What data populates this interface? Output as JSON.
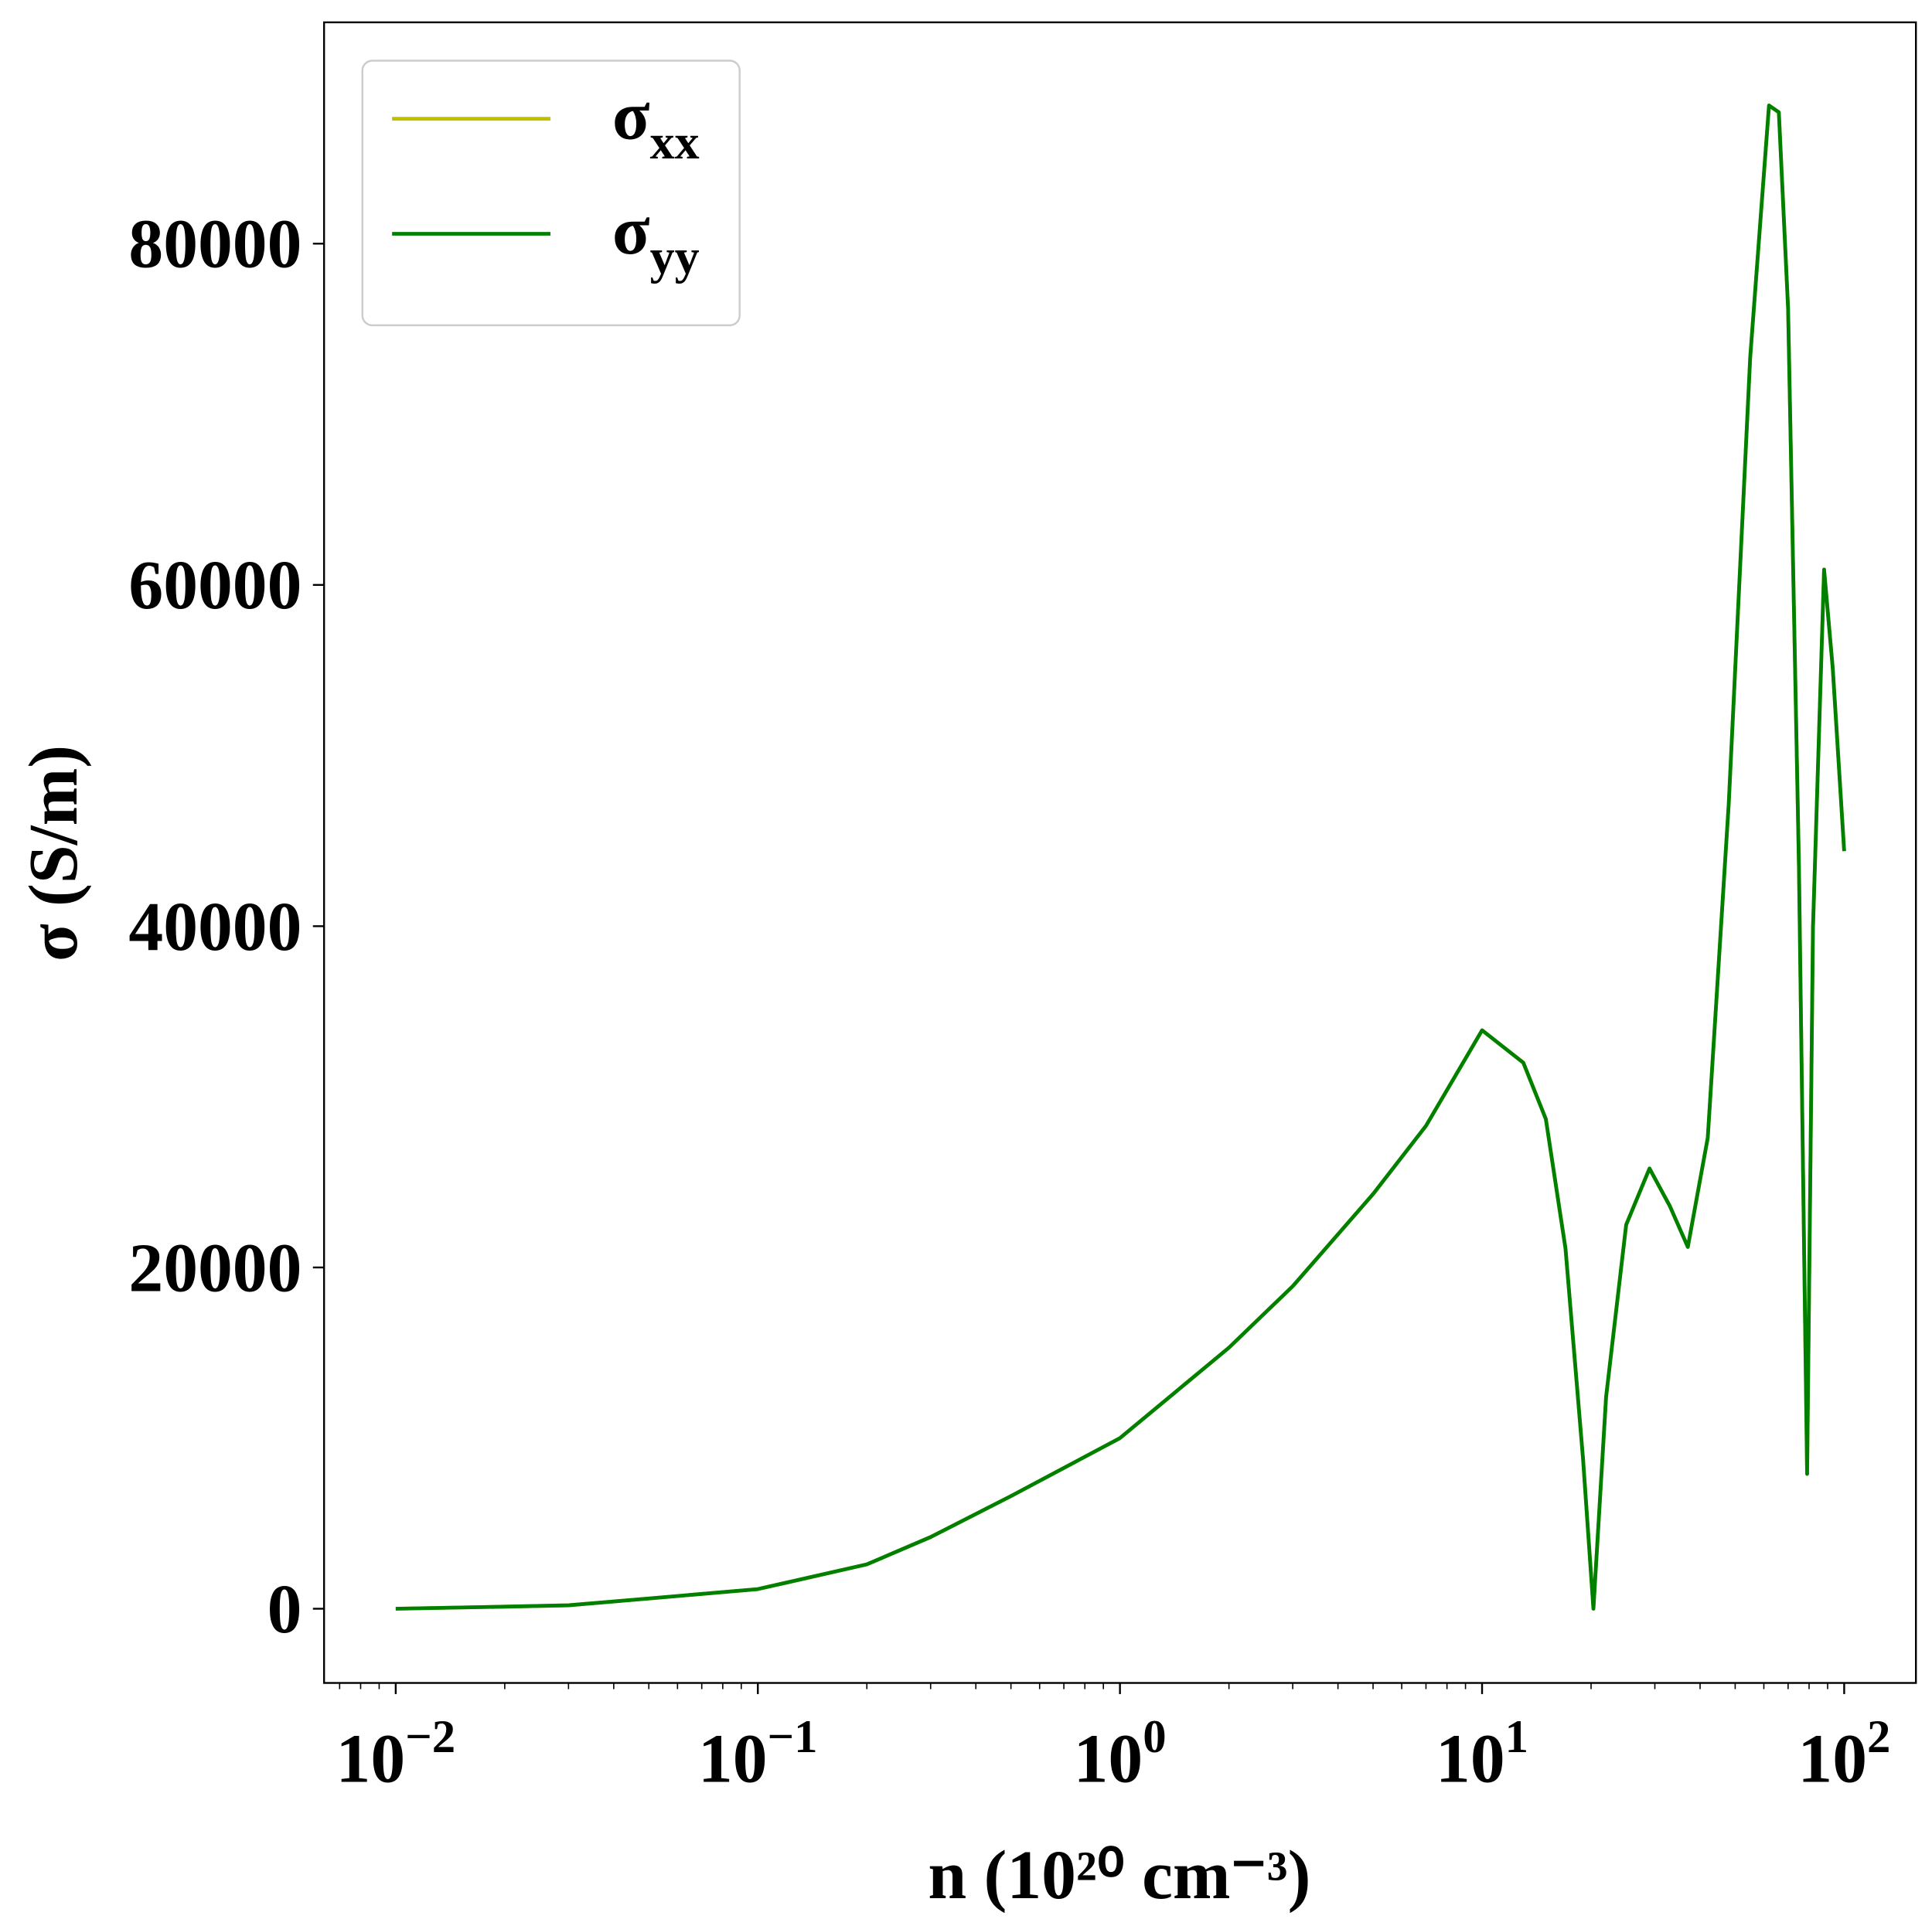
{
  "chart_data": {
    "type": "line",
    "xlabel": "n (10²⁰ cm⁻³)",
    "ylabel": "σ (S/m)",
    "xscale": "log",
    "xlim": [
      0.00634,
      157.8
    ],
    "ylim": [
      -4350,
      92970
    ],
    "xticks": [
      {
        "value": 0.01,
        "label": "10−2"
      },
      {
        "value": 0.1,
        "label": "10−1"
      },
      {
        "value": 1,
        "label": "100"
      },
      {
        "value": 10,
        "label": "101"
      },
      {
        "value": 100,
        "label": "102"
      }
    ],
    "yticks": [
      0,
      20000,
      40000,
      60000,
      80000
    ],
    "minor_xticks": true,
    "grid": false,
    "legend": "upper left",
    "x": [
      0.01,
      0.02,
      0.03,
      0.05,
      0.1,
      0.2,
      0.3,
      0.5,
      1,
      2,
      3,
      5,
      7,
      10,
      13,
      15,
      17,
      19,
      20.3,
      22,
      25,
      29,
      33,
      37,
      42,
      48,
      55,
      62,
      66,
      70,
      75,
      79,
      82,
      88,
      93,
      100
    ],
    "series": [
      {
        "name": "σxx",
        "color": "#bfbf00",
        "values": [
          0,
          120,
          200,
          600,
          1150,
          2600,
          4200,
          6600,
          10000,
          15300,
          18900,
          24300,
          28300,
          33900,
          32000,
          28700,
          21100,
          8800,
          0,
          12400,
          22500,
          25800,
          23600,
          21200,
          27600,
          47200,
          73300,
          88100,
          87700,
          76200,
          43500,
          7900,
          39900,
          60900,
          55100,
          44400
        ]
      },
      {
        "name": "σyy",
        "color": "#008000",
        "values": [
          0,
          120,
          200,
          600,
          1150,
          2600,
          4200,
          6600,
          10000,
          15300,
          18900,
          24300,
          28300,
          33900,
          32000,
          28700,
          21100,
          8800,
          0,
          12400,
          22500,
          25800,
          23600,
          21200,
          27600,
          47200,
          73300,
          88100,
          87700,
          76200,
          43500,
          7900,
          39900,
          60900,
          55100,
          44400
        ]
      }
    ]
  }
}
